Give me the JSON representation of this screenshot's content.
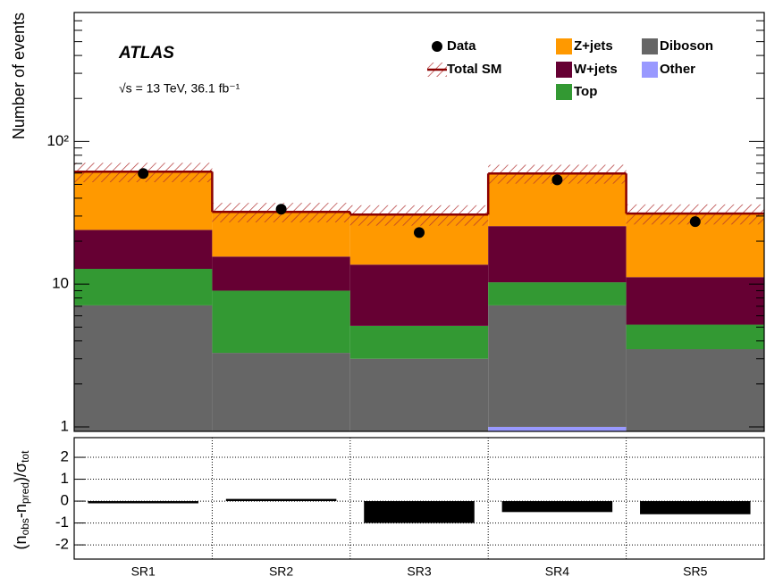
{
  "chart_data": {
    "type": "stacked-histogram",
    "ylabel": "Number of events",
    "experiment": "ATLAS",
    "annotation": "√s = 13 TeV, 36.1 fb⁻¹",
    "categories": [
      "SR1",
      "SR2",
      "SR3",
      "SR4",
      "SR5"
    ],
    "log_scale": true,
    "ylim": [
      0.93,
      800
    ],
    "yticks": [
      1,
      10,
      {
        "value": 100,
        "label": "10²"
      }
    ],
    "minor_yticks": [
      2,
      3,
      4,
      5,
      6,
      7,
      8,
      9,
      20,
      30,
      40,
      50,
      60,
      70,
      80,
      90,
      200,
      300,
      400,
      500,
      600,
      700
    ],
    "series": [
      {
        "name": "Other",
        "color": "#9999ff",
        "values": [
          0.5,
          0.4,
          0.4,
          1.0,
          0.4
        ]
      },
      {
        "name": "Diboson",
        "color": "#666666",
        "values": [
          6.6,
          2.9,
          2.6,
          6.1,
          3.1
        ]
      },
      {
        "name": "Top",
        "color": "#339933",
        "values": [
          5.7,
          5.7,
          2.1,
          3.2,
          1.7
        ]
      },
      {
        "name": "W+jets",
        "color": "#660033",
        "values": [
          11.2,
          6.6,
          8.6,
          15.2,
          6.0
        ]
      },
      {
        "name": "Z+jets",
        "color": "#ff9900",
        "values": [
          37.3,
          16.5,
          17.0,
          34.1,
          20.0
        ]
      }
    ],
    "total_sm": {
      "name": "Total SM",
      "color": "#8b0000",
      "uncertainty": [
        9.5,
        5,
        5,
        9,
        5
      ]
    },
    "data": {
      "name": "Data",
      "color": "#000000",
      "values": [
        59.6,
        33.5,
        23.0,
        53.8,
        27.4
      ]
    },
    "ratio": {
      "ylabel": [
        {
          "text": "(n"
        },
        {
          "text": "obs",
          "sub": true
        },
        {
          "text": "-n"
        },
        {
          "text": "pred",
          "sub": true
        },
        {
          "text": ")/σ"
        },
        {
          "text": "tot",
          "sub": true
        }
      ],
      "values": [
        -0.1,
        0.1,
        -1.0,
        -0.5,
        -0.6
      ],
      "color": "#000000",
      "ylim": [
        -2.65,
        2.9
      ],
      "yticks": [
        -2,
        -1,
        0,
        1,
        2
      ],
      "grid": true
    }
  }
}
